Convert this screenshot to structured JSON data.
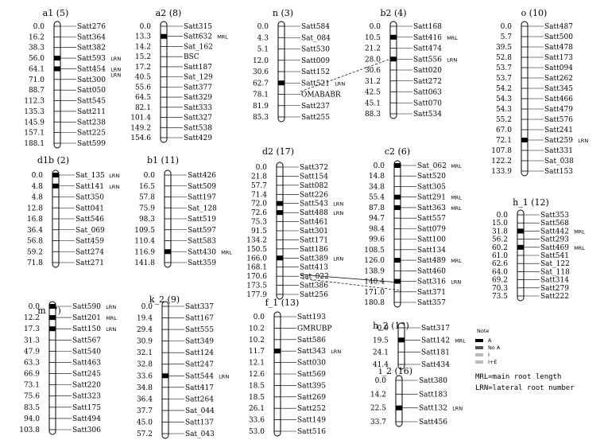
{
  "linkage_groups": [
    {
      "id": "a1",
      "count": "(5)",
      "markers": [
        [
          "0.0",
          "Satt276"
        ],
        [
          "16.2",
          "Satt364"
        ],
        [
          "38.3",
          "Satt382"
        ],
        [
          "56.0",
          "Satt593"
        ],
        [
          "64.1",
          "Satt454"
        ],
        [
          "71.0",
          "Satt300"
        ],
        [
          "88.7",
          "Satt050"
        ],
        [
          "112.3",
          "Satt545"
        ],
        [
          "135.3",
          "Satt211"
        ],
        [
          "145.9",
          "Satt238"
        ],
        [
          "157.1",
          "Satt225"
        ],
        [
          "188.1",
          "Satt599"
        ]
      ],
      "qtl": [
        {
          "label": "LRN",
          "marker": 3
        },
        {
          "label": "LRN",
          "marker": 4
        },
        {
          "label": "LRN",
          "marker": 4
        }
      ]
    },
    {
      "id": "a2",
      "count": "(8)",
      "markers": [
        [
          "0.0",
          "Satt315"
        ],
        [
          "13.3",
          "Satt632"
        ],
        [
          "14.2",
          "Sat_162"
        ],
        [
          "15.2",
          "BSC"
        ],
        [
          "17.2",
          "Satt187"
        ],
        [
          "40.5",
          "Sat_129"
        ],
        [
          "55.6",
          "Satt377"
        ],
        [
          "64.5",
          "Satt329"
        ],
        [
          "82.1",
          "Satt333"
        ],
        [
          "101.4",
          "Satt327"
        ],
        [
          "149.2",
          "Satt538"
        ],
        [
          "154.6",
          "Satt429"
        ]
      ],
      "qtl": [
        {
          "label": "MRL",
          "marker": 1
        }
      ]
    },
    {
      "id": "n",
      "count": "(3)",
      "markers": [
        [
          "0.0",
          "Satt584"
        ],
        [
          "4.3",
          "Sat_084"
        ],
        [
          "5.1",
          "Satt530"
        ],
        [
          "12.0",
          "Satt009"
        ],
        [
          "30.6",
          "Satt152"
        ],
        [
          "62.7",
          "Satt521"
        ],
        [
          "78.1",
          "OMABABR"
        ],
        [
          "81.9",
          "Satt237"
        ],
        [
          "85.3",
          "Satt255"
        ]
      ],
      "qtl": [
        {
          "label": "LRN",
          "marker": 5
        }
      ]
    },
    {
      "id": "b2",
      "count": "(4)",
      "markers": [
        [
          "0.0",
          "Satt168"
        ],
        [
          "10.5",
          "Satt416"
        ],
        [
          "21.2",
          "Satt474"
        ],
        [
          "28.0",
          "Satt556"
        ],
        [
          "30.6",
          "Satt020"
        ],
        [
          "31.2",
          "Satt272"
        ],
        [
          "42.5",
          "Satt063"
        ],
        [
          "45.1",
          "Satt070"
        ],
        [
          "88.3",
          "Satt534"
        ]
      ],
      "qtl": [
        {
          "label": "MRL",
          "marker": 1
        },
        {
          "label": "LRN",
          "marker": 3
        }
      ]
    },
    {
      "id": "o",
      "count": "(10)",
      "markers": [
        [
          "0.0",
          "Satt487"
        ],
        [
          "5.7",
          "Satt500"
        ],
        [
          "39.5",
          "Satt478"
        ],
        [
          "52.8",
          "Satt173"
        ],
        [
          "53.7",
          "Satt094"
        ],
        [
          "53.7",
          "Satt262"
        ],
        [
          "54.2",
          "Satt345"
        ],
        [
          "54.3",
          "Satt466"
        ],
        [
          "54.3",
          "Satt479"
        ],
        [
          "55.2",
          "Satt576"
        ],
        [
          "67.0",
          "Satt241"
        ],
        [
          "72.1",
          "Satt259"
        ],
        [
          "107.8",
          "Satt331"
        ],
        [
          "122.2",
          "Sat_038"
        ],
        [
          "133.9",
          "Satt153"
        ]
      ],
      "qtl": [
        {
          "label": "LRN",
          "marker": 11
        }
      ]
    },
    {
      "id": "d1b",
      "count": "(2)",
      "markers": [
        [
          "0.0",
          "Sat_135"
        ],
        [
          "4.8",
          "Satt141"
        ],
        [
          "4.8",
          "Satt350"
        ],
        [
          "12.8",
          "Satt041"
        ],
        [
          "16.8",
          "Satt546"
        ],
        [
          "36.4",
          "Sat_069"
        ],
        [
          "56.8",
          "Satt459"
        ],
        [
          "59.2",
          "Satt274"
        ],
        [
          "71.8",
          "Satt271"
        ]
      ],
      "qtl": [
        {
          "label": "LRN",
          "marker": 0
        },
        {
          "label": "LRN",
          "marker": 1
        }
      ]
    },
    {
      "id": "b1",
      "count": "(11)",
      "markers": [
        [
          "0.0",
          "Satt426"
        ],
        [
          "16.5",
          "Satt509"
        ],
        [
          "57.8",
          "Satt197"
        ],
        [
          "75.9",
          "Sat_128"
        ],
        [
          "98.3",
          "Satt519"
        ],
        [
          "109.5",
          "Satt597"
        ],
        [
          "110.4",
          "Satt583"
        ],
        [
          "116.9",
          "Satt430"
        ],
        [
          "141.8",
          "Satt359"
        ]
      ],
      "qtl": [
        {
          "label": "MRL",
          "marker": 7
        }
      ]
    },
    {
      "id": "d2",
      "count": "(17)",
      "markers": [
        [
          "0.0",
          "Satt372"
        ],
        [
          "21.8",
          "Satt154"
        ],
        [
          "57.7",
          "Satt082"
        ],
        [
          "71.4",
          "Satt226"
        ],
        [
          "72.0",
          "Satt543"
        ],
        [
          "72.6",
          "Satt488"
        ],
        [
          "75.3",
          "Satt461"
        ],
        [
          "91.5",
          "Satt301"
        ],
        [
          "134.2",
          "Satt171"
        ],
        [
          "150.5",
          "Satt186"
        ],
        [
          "166.0",
          "Satt389"
        ],
        [
          "168.1",
          "Satt413"
        ],
        [
          "170.6",
          "Sat_022"
        ],
        [
          "173.5",
          "Satt386"
        ],
        [
          "177.9",
          "Satt256"
        ]
      ],
      "qtl": [
        {
          "label": "LRN",
          "marker": 4
        },
        {
          "label": "LRN",
          "marker": 5
        },
        {
          "label": "LRN",
          "marker": 10
        }
      ]
    },
    {
      "id": "c2",
      "count": "(6)",
      "markers": [
        [
          "0.0",
          "Sat_062"
        ],
        [
          "14.8",
          "Satt520"
        ],
        [
          "34.8",
          "Satt305"
        ],
        [
          "55.4",
          "Satt291"
        ],
        [
          "87.8",
          "Satt363"
        ],
        [
          "94.7",
          "Satt557"
        ],
        [
          "98.4",
          "Satt079"
        ],
        [
          "99.6",
          "Satt100"
        ],
        [
          "108.5",
          "Satt134"
        ],
        [
          "126.0",
          "Satt489"
        ],
        [
          "138.9",
          "Satt460"
        ],
        [
          "140.4",
          "Satt316"
        ],
        [
          "171.0",
          "Satt371"
        ],
        [
          "180.8",
          "Satt357"
        ]
      ],
      "qtl": [
        {
          "label": "MRL",
          "marker": 0
        },
        {
          "label": "MRL",
          "marker": 3
        },
        {
          "label": "MRL",
          "marker": 4
        },
        {
          "label": "MRL",
          "marker": 9
        },
        {
          "label": "LRN",
          "marker": 11
        }
      ]
    },
    {
      "id": "h_1",
      "count": "(12)",
      "markers": [
        [
          "0.0",
          "Satt353"
        ],
        [
          "15.0",
          "Satt568"
        ],
        [
          "31.8",
          "Satt442"
        ],
        [
          "56.2",
          "Satt293"
        ],
        [
          "60.2",
          "Satt469"
        ],
        [
          "61.0",
          "Satt541"
        ],
        [
          "62.6",
          "Sat_122"
        ],
        [
          "64.0",
          "Sat_118"
        ],
        [
          "69.2",
          "Satt314"
        ],
        [
          "70.3",
          "Satt279"
        ],
        [
          "73.5",
          "Satt222"
        ]
      ],
      "qtl": [
        {
          "label": "MRL",
          "marker": 2
        },
        {
          "label": "MRL",
          "marker": 4
        }
      ]
    },
    {
      "id": "m",
      "count": "(7)",
      "markers": [
        [
          "0.0",
          "Satt590"
        ],
        [
          "12.2",
          "Satt201"
        ],
        [
          "17.3",
          "Satt150"
        ],
        [
          "31.3",
          "Satt567"
        ],
        [
          "47.9",
          "Satt540"
        ],
        [
          "63.3",
          "Satt463"
        ],
        [
          "66.9",
          "Satt245"
        ],
        [
          "73.1",
          "Satt220"
        ],
        [
          "75.6",
          "Satt323"
        ],
        [
          "83.5",
          "Satt175"
        ],
        [
          "94.0",
          "Satt494"
        ],
        [
          "103.8",
          "Satt306"
        ]
      ],
      "qtl": [
        {
          "label": "LRN",
          "marker": 0
        },
        {
          "label": "MRL",
          "marker": 1
        },
        {
          "label": "LRN",
          "marker": 2
        }
      ]
    },
    {
      "id": "k_2",
      "count": "(9)",
      "markers": [
        [
          "0.0",
          "Satt337"
        ],
        [
          "19.4",
          "Satt167"
        ],
        [
          "29.4",
          "Satt555"
        ],
        [
          "30.9",
          "Satt349"
        ],
        [
          "32.1",
          "Satt124"
        ],
        [
          "32.8",
          "Satt247"
        ],
        [
          "33.6",
          "Satt544"
        ],
        [
          "34.8",
          "Satt417"
        ],
        [
          "36.4",
          "Satt264"
        ],
        [
          "37.7",
          "Sat_044"
        ],
        [
          "45.0",
          "Satt137"
        ],
        [
          "57.2",
          "Sat_043"
        ]
      ],
      "qtl": [
        {
          "label": "LRN",
          "marker": 6
        }
      ]
    },
    {
      "id": "f_1",
      "count": "(13)",
      "markers": [
        [
          "0.0",
          "Satt193"
        ],
        [
          "10.2",
          "GMRUBP"
        ],
        [
          "10.2",
          "Satt586"
        ],
        [
          "11.7",
          "Satt343"
        ],
        [
          "12.1",
          "Satt030"
        ],
        [
          "12.6",
          "Satt569"
        ],
        [
          "18.5",
          "Satt395"
        ],
        [
          "18.5",
          "Satt269"
        ],
        [
          "26.1",
          "Satt252"
        ],
        [
          "33.6",
          "Satt149"
        ],
        [
          "53.0",
          "Satt516"
        ]
      ],
      "qtl": [
        {
          "label": "LRN",
          "marker": 3
        }
      ]
    },
    {
      "id": "h_2",
      "count": "(12)",
      "markers": [
        [
          "0.0",
          "Satt317"
        ],
        [
          "19.5",
          "Satt142"
        ],
        [
          "24.1",
          "Satt181"
        ],
        [
          "41.4",
          "Satt434"
        ]
      ],
      "qtl": [
        {
          "label": "MRL",
          "marker": 1
        }
      ]
    },
    {
      "id": "i_2",
      "count": "(16)",
      "markers": [
        [
          "0.0",
          "Satt380"
        ],
        [
          "14.2",
          "Satt183"
        ],
        [
          "22.5",
          "Satt132"
        ],
        [
          "33.7",
          "Satt456"
        ]
      ],
      "qtl": [
        {
          "label": "LRN",
          "marker": 2
        }
      ]
    }
  ],
  "legend": {
    "title": "Note",
    "symbols": [
      {
        "kind": "black-bar",
        "label": "A"
      },
      {
        "kind": "dot-bar",
        "label": "No A"
      },
      {
        "kind": "grey-bar",
        "label": "I"
      },
      {
        "kind": "grey-bar-2",
        "label": "I+E"
      }
    ],
    "abbreviations": [
      "MRL=main root length",
      "LRN=lateral root number"
    ]
  }
}
